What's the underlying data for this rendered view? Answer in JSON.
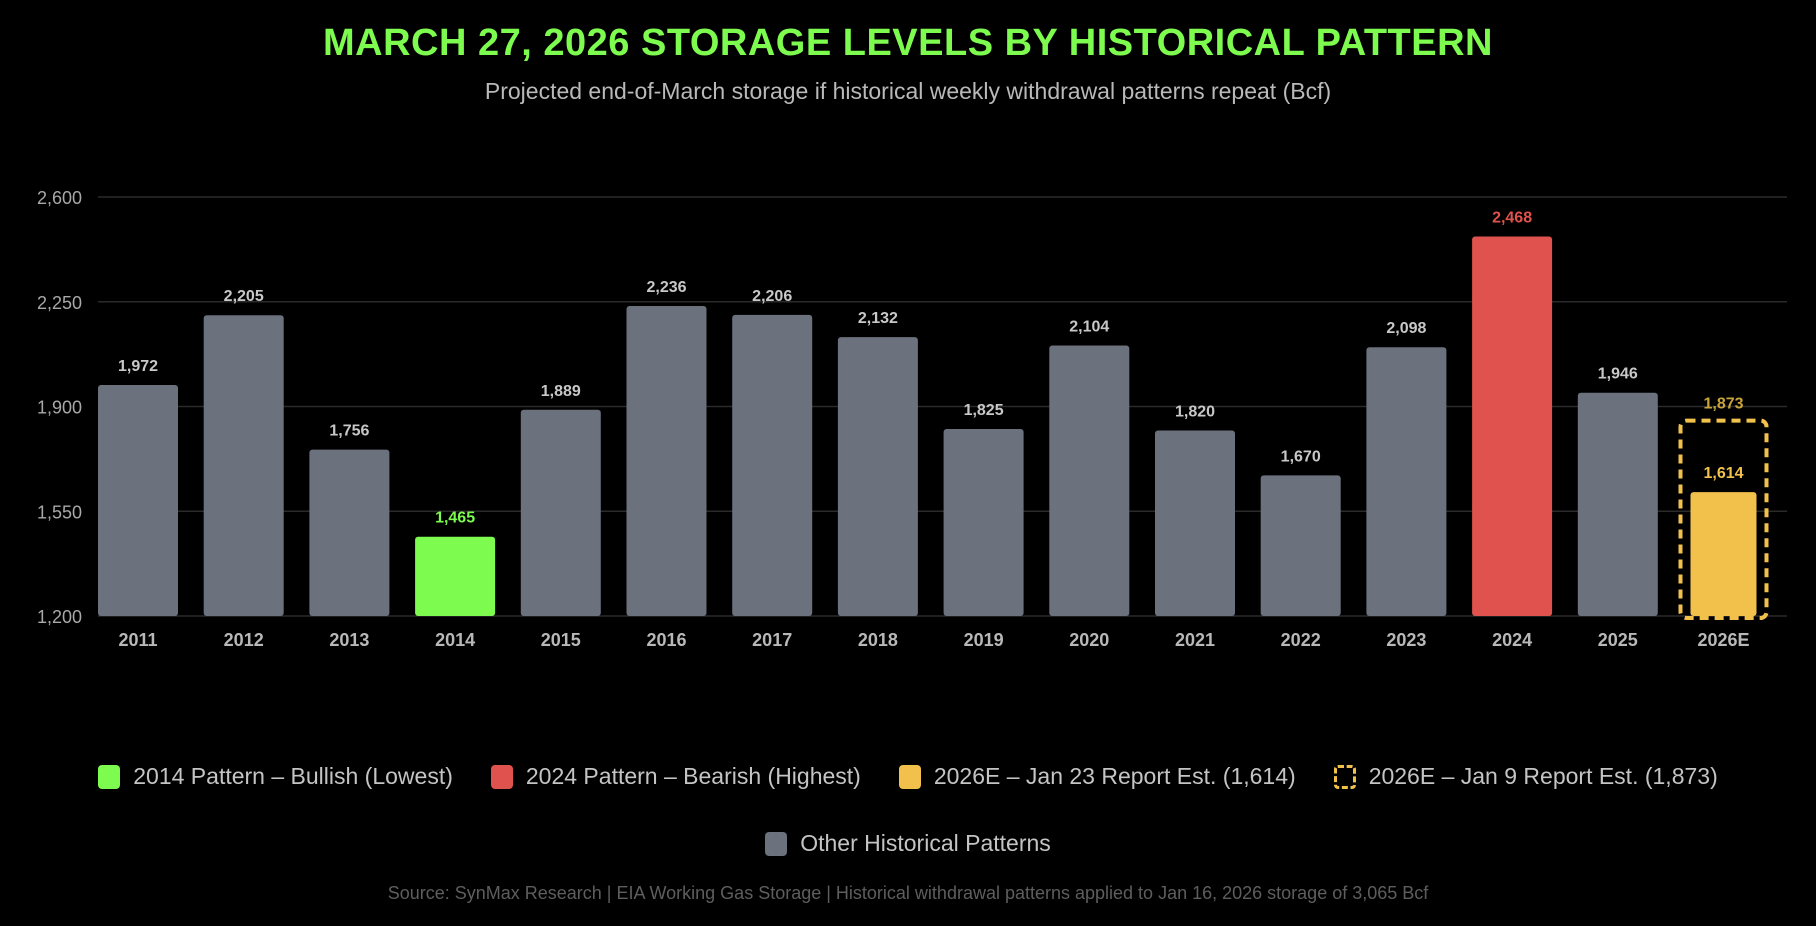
{
  "title": "MARCH 27, 2026 STORAGE LEVELS BY HISTORICAL PATTERN",
  "subtitle": "Projected end-of-March storage if historical weekly withdrawal patterns repeat (Bcf)",
  "colors": {
    "bullish": "#7dfb4e",
    "bearish": "#df524d",
    "estimate": "#f2c14b",
    "estimate_label_dim": "#c9a43c",
    "other": "#6b717d",
    "grid": "#2a2a2a"
  },
  "chart_data": {
    "type": "bar",
    "title": "MARCH 27, 2026 STORAGE LEVELS BY HISTORICAL PATTERN",
    "ylabel": "Bcf",
    "ylim": [
      1200,
      2600
    ],
    "yticks": [
      1200,
      1550,
      1900,
      2250,
      2600
    ],
    "ytick_labels": [
      "1,200",
      "1,550",
      "1,900",
      "2,250",
      "2,600"
    ],
    "grid": true,
    "categories": [
      "2011",
      "2012",
      "2013",
      "2014",
      "2015",
      "2016",
      "2017",
      "2018",
      "2019",
      "2020",
      "2021",
      "2022",
      "2023",
      "2024",
      "2025",
      "2026E"
    ],
    "values": [
      1972,
      2205,
      1756,
      1465,
      1889,
      2236,
      2206,
      2132,
      1825,
      2104,
      1820,
      1670,
      2098,
      2468,
      1946,
      1614
    ],
    "value_labels": [
      "1,972",
      "2,205",
      "1,756",
      "1,465",
      "1,889",
      "2,236",
      "2,206",
      "2,132",
      "1,825",
      "2,104",
      "1,820",
      "1,670",
      "2,098",
      "2,468",
      "1,946",
      "1,614"
    ],
    "kinds": [
      "other",
      "other",
      "other",
      "bullish",
      "other",
      "other",
      "other",
      "other",
      "other",
      "other",
      "other",
      "other",
      "other",
      "bearish",
      "other",
      "estimate"
    ],
    "prior_estimate": {
      "category": "2026E",
      "value": 1873,
      "label": "1,873"
    },
    "legend_placement": "bottom"
  },
  "legend": [
    {
      "label": "2014 Pattern – Bullish (Lowest)",
      "kind": "bullish"
    },
    {
      "label": "2024 Pattern – Bearish (Highest)",
      "kind": "bearish"
    },
    {
      "label": "2026E – Jan 23 Report Est. (1,614)",
      "kind": "estimate"
    },
    {
      "label": "2026E – Jan 9 Report Est. (1,873)",
      "kind": "dashed"
    },
    {
      "label": "Other Historical Patterns",
      "kind": "other"
    }
  ],
  "source": "Source: SynMax Research | EIA Working Gas Storage | Historical withdrawal patterns applied to Jan 16, 2026 storage of 3,065 Bcf"
}
